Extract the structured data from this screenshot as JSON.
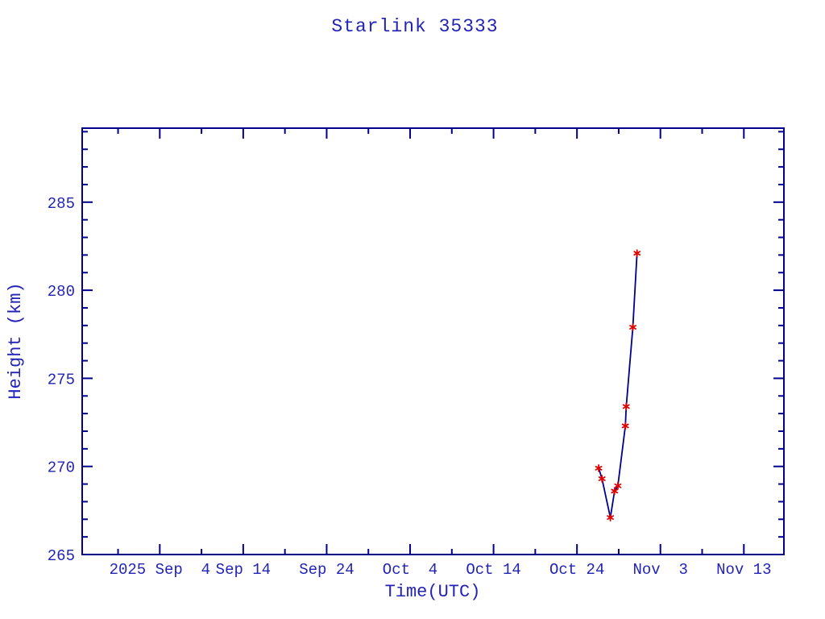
{
  "window": {
    "background_color": "#ffffff"
  },
  "colors": {
    "frame_and_line": "#00008b",
    "label_text": "#2323b5",
    "marker": "#df0000"
  },
  "chart_data": {
    "type": "line",
    "title": "Starlink 35333",
    "xlabel": "Time(UTC)",
    "ylabel": "Height (km)",
    "grid": false,
    "legend": false,
    "x_axis": {
      "unit": "days since 2025 Sep 4 00:00 UTC",
      "range": [
        -9.3,
        74.8
      ],
      "major_ticks": [
        {
          "day": 0,
          "label": "2025 Sep  4"
        },
        {
          "day": 10,
          "label": "Sep 14"
        },
        {
          "day": 20,
          "label": "Sep 24"
        },
        {
          "day": 30,
          "label": "Oct  4"
        },
        {
          "day": 40,
          "label": "Oct 14"
        },
        {
          "day": 50,
          "label": "Oct 24"
        },
        {
          "day": 60,
          "label": "Nov  3"
        },
        {
          "day": 70,
          "label": "Nov 13"
        }
      ],
      "minor_tick_days": [
        -5,
        5,
        15,
        25,
        35,
        45,
        55,
        65
      ]
    },
    "y_axis": {
      "range": [
        265,
        289.2
      ],
      "major_ticks": [
        265,
        270,
        275,
        280,
        285
      ],
      "minor_step": 1
    },
    "series": [
      {
        "name": "orbit-height",
        "marker": "asterisk",
        "points": [
          {
            "day": 52.6,
            "date": "Oct 26.6",
            "height_km": 269.9
          },
          {
            "day": 53.0,
            "date": "Oct 27.0",
            "height_km": 269.3
          },
          {
            "day": 54.0,
            "date": "Oct 28.0",
            "height_km": 267.1
          },
          {
            "day": 54.5,
            "date": "Oct 28.5",
            "height_km": 268.6
          },
          {
            "day": 54.9,
            "date": "Oct 28.9",
            "height_km": 268.9
          },
          {
            "day": 55.8,
            "date": "Oct 29.8",
            "height_km": 272.3
          },
          {
            "day": 55.9,
            "date": "Oct 29.9",
            "height_km": 273.4
          },
          {
            "day": 56.7,
            "date": "Oct 30.7",
            "height_km": 277.9
          },
          {
            "day": 57.2,
            "date": "Oct 31.2",
            "height_km": 282.1
          }
        ]
      }
    ]
  }
}
